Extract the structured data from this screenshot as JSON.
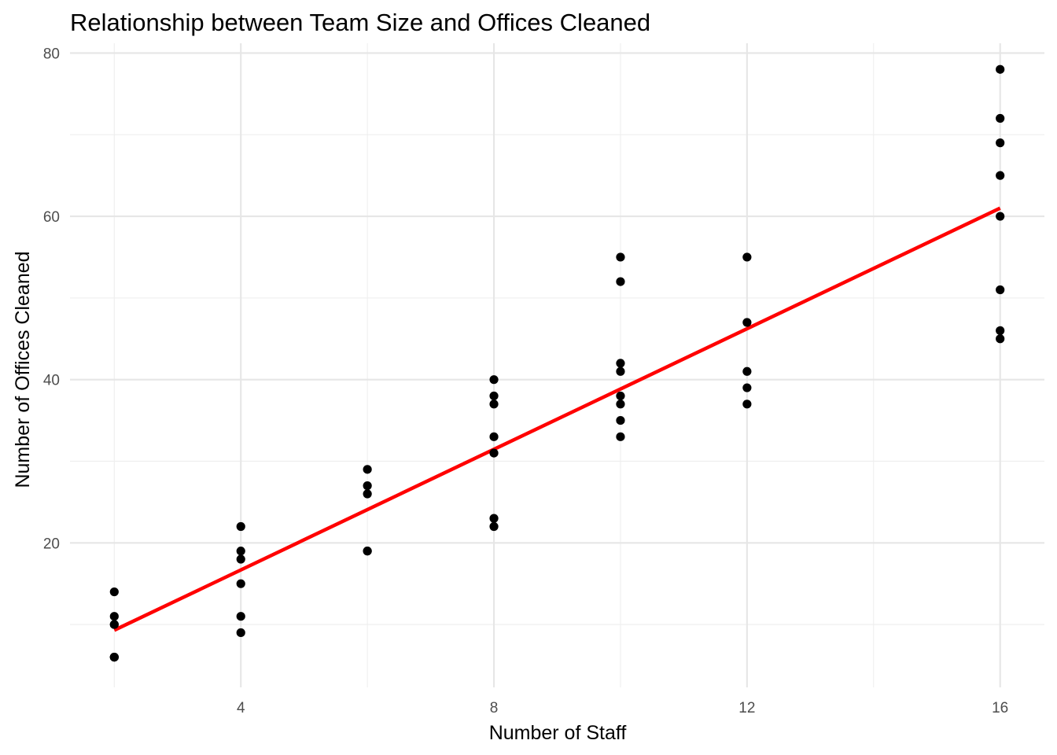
{
  "chart_data": {
    "type": "scatter",
    "title": "Relationship between Team Size and Offices Cleaned",
    "xlabel": "Number of Staff",
    "ylabel": "Number of Offices Cleaned",
    "xlim": [
      1.3,
      16.7
    ],
    "ylim": [
      2.3,
      81.2
    ],
    "x_ticks": [
      4,
      8,
      12,
      16
    ],
    "y_ticks": [
      20,
      40,
      60,
      80
    ],
    "x_minor": [
      2,
      6,
      10,
      14
    ],
    "y_minor": [
      10,
      30,
      50,
      70
    ],
    "grid": true,
    "point_color": "#000000",
    "line_color": "#ff0000",
    "trend_line": {
      "x": [
        2,
        16
      ],
      "y": [
        9.3,
        61.0
      ]
    },
    "points": [
      {
        "x": 2,
        "y": 14
      },
      {
        "x": 2,
        "y": 11
      },
      {
        "x": 2,
        "y": 10
      },
      {
        "x": 2,
        "y": 10
      },
      {
        "x": 2,
        "y": 6
      },
      {
        "x": 2,
        "y": 6
      },
      {
        "x": 2,
        "y": 6
      },
      {
        "x": 4,
        "y": 22
      },
      {
        "x": 4,
        "y": 19
      },
      {
        "x": 4,
        "y": 18
      },
      {
        "x": 4,
        "y": 15
      },
      {
        "x": 4,
        "y": 11
      },
      {
        "x": 4,
        "y": 9
      },
      {
        "x": 6,
        "y": 29
      },
      {
        "x": 6,
        "y": 27
      },
      {
        "x": 6,
        "y": 26
      },
      {
        "x": 6,
        "y": 19
      },
      {
        "x": 6,
        "y": 19
      },
      {
        "x": 8,
        "y": 40
      },
      {
        "x": 8,
        "y": 38
      },
      {
        "x": 8,
        "y": 37
      },
      {
        "x": 8,
        "y": 33
      },
      {
        "x": 8,
        "y": 31
      },
      {
        "x": 8,
        "y": 23
      },
      {
        "x": 8,
        "y": 22
      },
      {
        "x": 10,
        "y": 55
      },
      {
        "x": 10,
        "y": 52
      },
      {
        "x": 10,
        "y": 42
      },
      {
        "x": 10,
        "y": 41
      },
      {
        "x": 10,
        "y": 38
      },
      {
        "x": 10,
        "y": 37
      },
      {
        "x": 10,
        "y": 35
      },
      {
        "x": 10,
        "y": 33
      },
      {
        "x": 12,
        "y": 55
      },
      {
        "x": 12,
        "y": 47
      },
      {
        "x": 12,
        "y": 41
      },
      {
        "x": 12,
        "y": 39
      },
      {
        "x": 12,
        "y": 37
      },
      {
        "x": 16,
        "y": 78
      },
      {
        "x": 16,
        "y": 72
      },
      {
        "x": 16,
        "y": 69
      },
      {
        "x": 16,
        "y": 65
      },
      {
        "x": 16,
        "y": 60
      },
      {
        "x": 16,
        "y": 51
      },
      {
        "x": 16,
        "y": 46
      },
      {
        "x": 16,
        "y": 45
      }
    ]
  }
}
